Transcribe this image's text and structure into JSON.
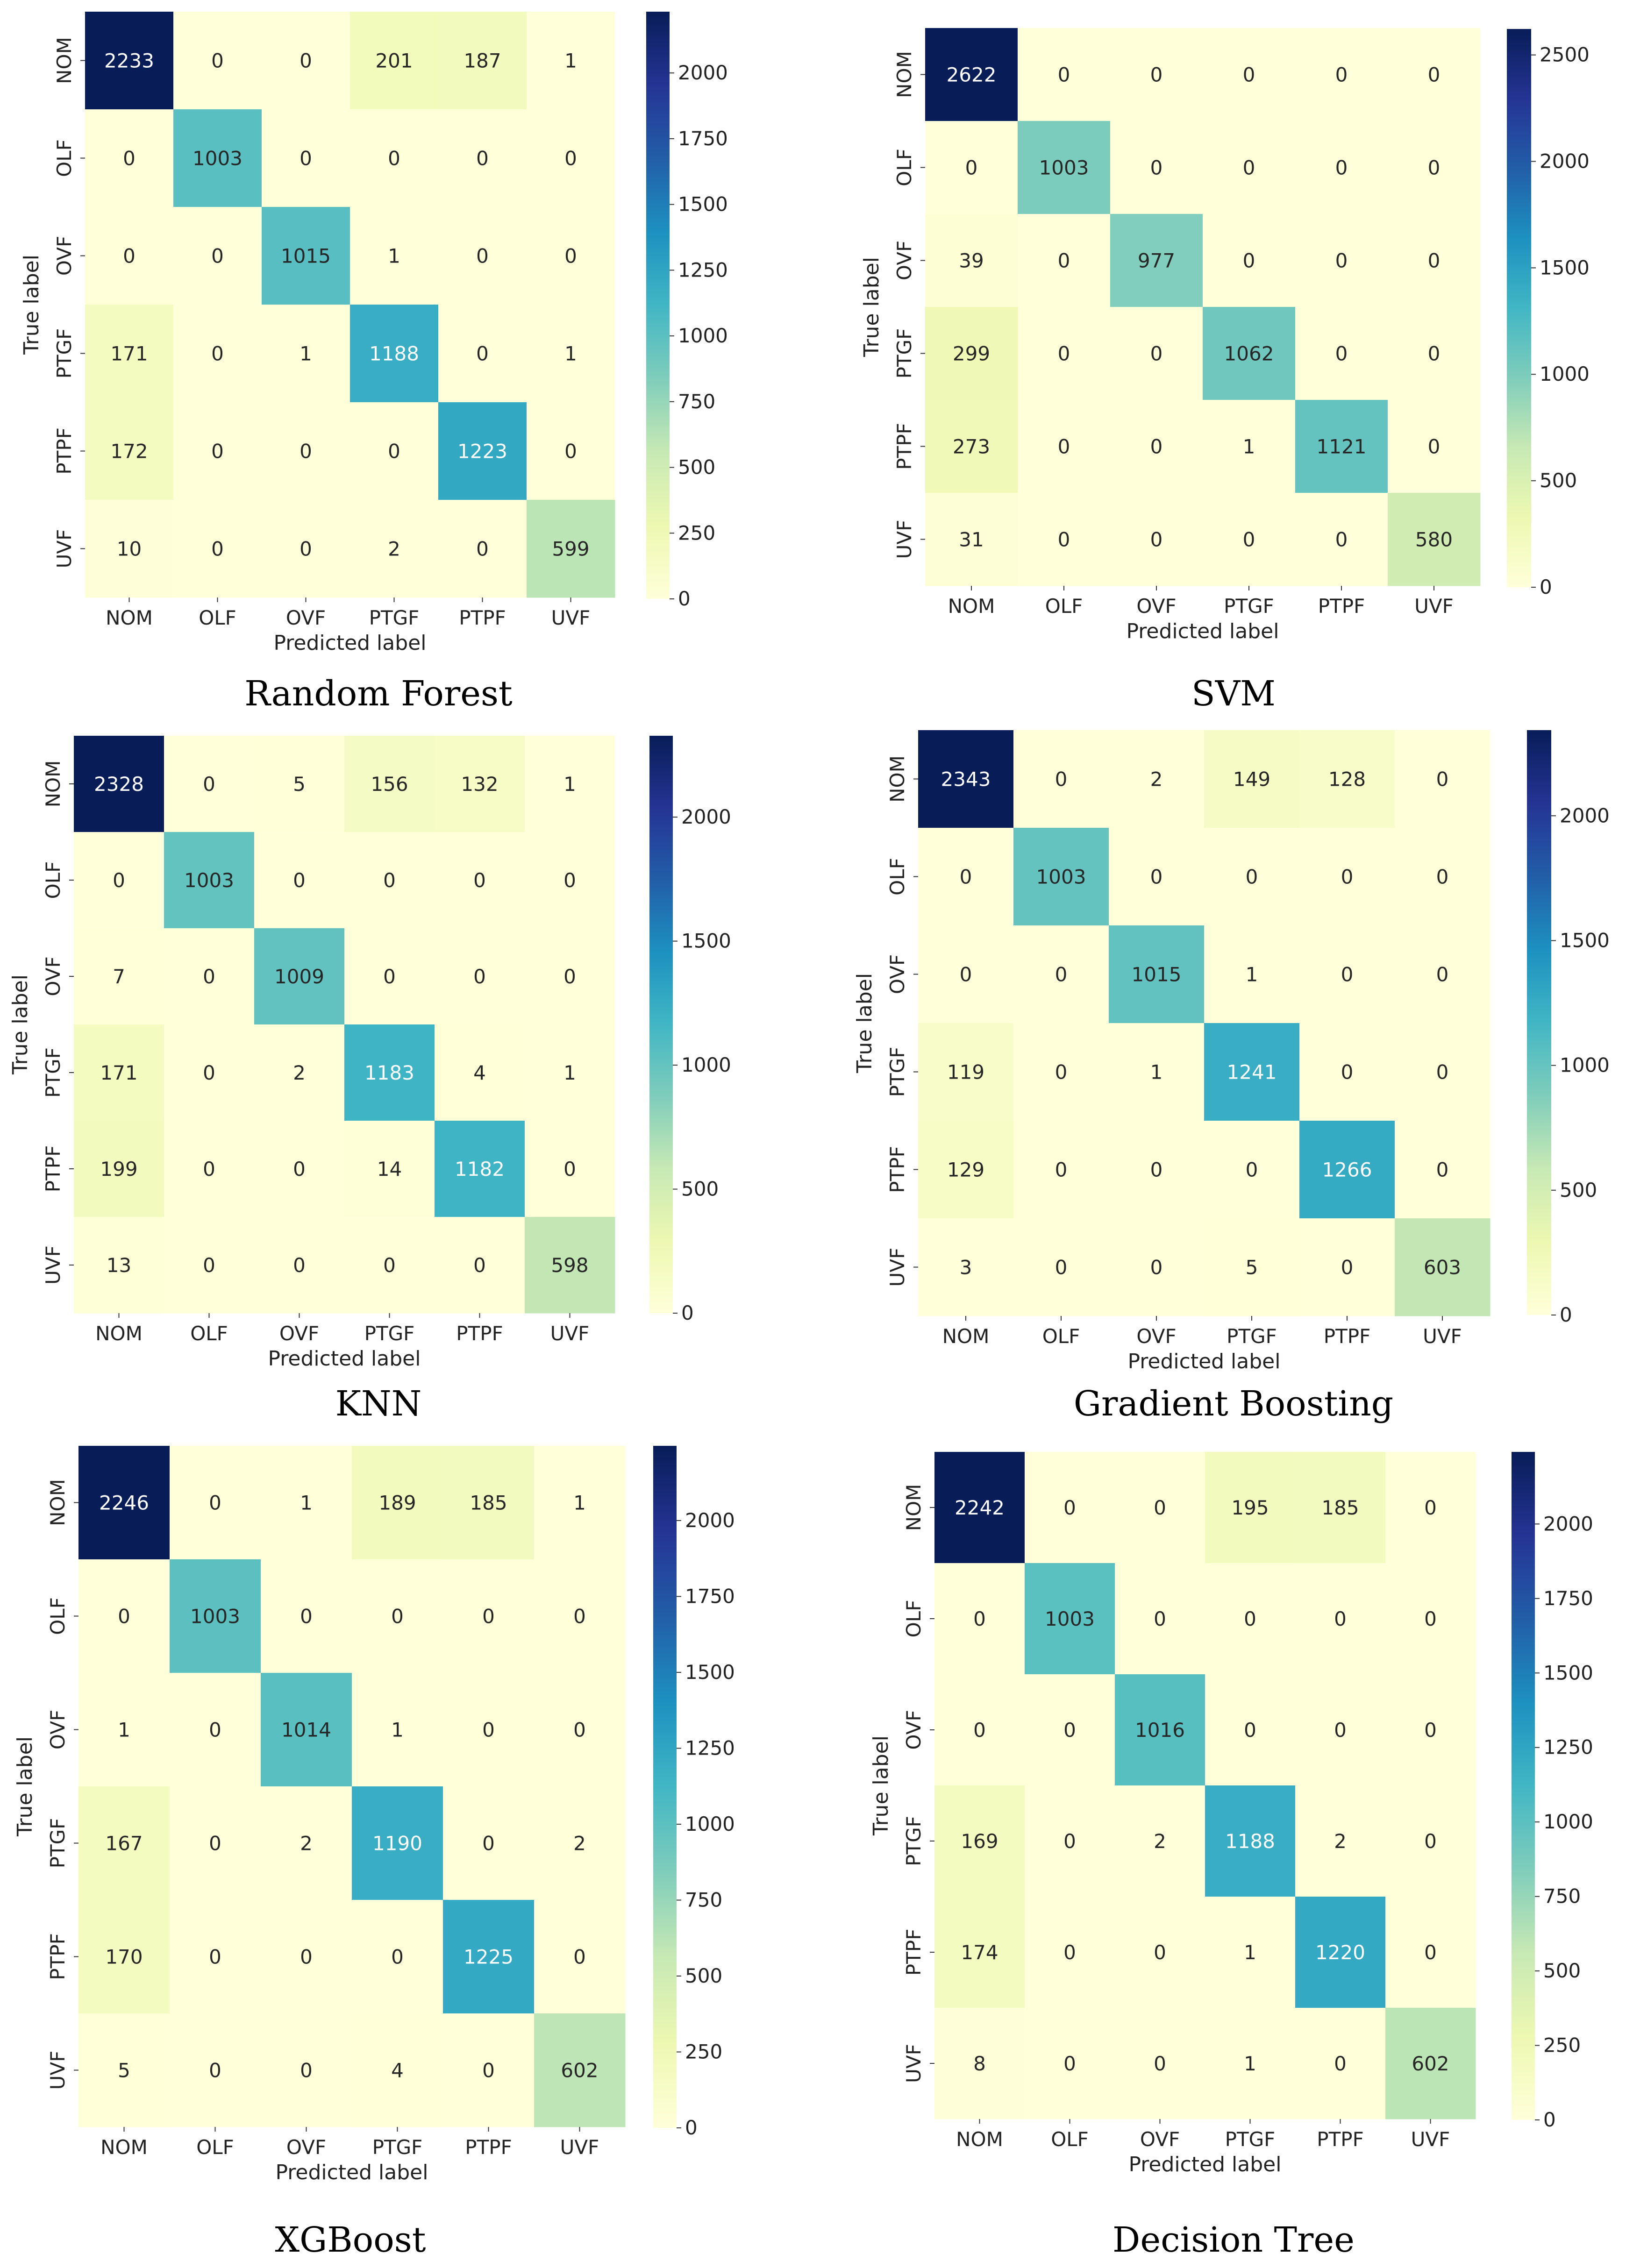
{
  "chart_data": [
    {
      "type": "heatmap",
      "caption": "Random Forest",
      "xlabel": "Predicted label",
      "ylabel": "True label",
      "x_categories": [
        "NOM",
        "OLF",
        "OVF",
        "PTGF",
        "PTPF",
        "UVF"
      ],
      "y_categories": [
        "NOM",
        "OLF",
        "OVF",
        "PTGF",
        "PTPF",
        "UVF"
      ],
      "matrix": [
        [
          2233,
          0,
          0,
          201,
          187,
          1
        ],
        [
          0,
          1003,
          0,
          0,
          0,
          0
        ],
        [
          0,
          0,
          1015,
          1,
          0,
          0
        ],
        [
          171,
          0,
          1,
          1188,
          0,
          1
        ],
        [
          172,
          0,
          0,
          0,
          1223,
          0
        ],
        [
          10,
          0,
          0,
          2,
          0,
          599
        ]
      ],
      "colorbar": {
        "vmin": 0,
        "vmax": 2233,
        "ticks": [
          0,
          250,
          500,
          750,
          1000,
          1250,
          1500,
          1750,
          2000
        ]
      }
    },
    {
      "type": "heatmap",
      "caption": "SVM",
      "xlabel": "Predicted label",
      "ylabel": "True label",
      "x_categories": [
        "NOM",
        "OLF",
        "OVF",
        "PTGF",
        "PTPF",
        "UVF"
      ],
      "y_categories": [
        "NOM",
        "OLF",
        "OVF",
        "PTGF",
        "PTPF",
        "UVF"
      ],
      "matrix": [
        [
          2622,
          0,
          0,
          0,
          0,
          0
        ],
        [
          0,
          1003,
          0,
          0,
          0,
          0
        ],
        [
          39,
          0,
          977,
          0,
          0,
          0
        ],
        [
          299,
          0,
          0,
          1062,
          0,
          0
        ],
        [
          273,
          0,
          0,
          1,
          1121,
          0
        ],
        [
          31,
          0,
          0,
          0,
          0,
          580
        ]
      ],
      "colorbar": {
        "vmin": 0,
        "vmax": 2622,
        "ticks": [
          0,
          500,
          1000,
          1500,
          2000,
          2500
        ]
      }
    },
    {
      "type": "heatmap",
      "caption": "KNN",
      "xlabel": "Predicted label",
      "ylabel": "True label",
      "x_categories": [
        "NOM",
        "OLF",
        "OVF",
        "PTGF",
        "PTPF",
        "UVF"
      ],
      "y_categories": [
        "NOM",
        "OLF",
        "OVF",
        "PTGF",
        "PTPF",
        "UVF"
      ],
      "matrix": [
        [
          2328,
          0,
          5,
          156,
          132,
          1
        ],
        [
          0,
          1003,
          0,
          0,
          0,
          0
        ],
        [
          7,
          0,
          1009,
          0,
          0,
          0
        ],
        [
          171,
          0,
          2,
          1183,
          4,
          1
        ],
        [
          199,
          0,
          0,
          14,
          1182,
          0
        ],
        [
          13,
          0,
          0,
          0,
          0,
          598
        ]
      ],
      "colorbar": {
        "vmin": 0,
        "vmax": 2328,
        "ticks": [
          0,
          500,
          1000,
          1500,
          2000
        ]
      }
    },
    {
      "type": "heatmap",
      "caption": "Gradient Boosting",
      "xlabel": "Predicted label",
      "ylabel": "True label",
      "x_categories": [
        "NOM",
        "OLF",
        "OVF",
        "PTGF",
        "PTPF",
        "UVF"
      ],
      "y_categories": [
        "NOM",
        "OLF",
        "OVF",
        "PTGF",
        "PTPF",
        "UVF"
      ],
      "matrix": [
        [
          2343,
          0,
          2,
          149,
          128,
          0
        ],
        [
          0,
          1003,
          0,
          0,
          0,
          0
        ],
        [
          0,
          0,
          1015,
          1,
          0,
          0
        ],
        [
          119,
          0,
          1,
          1241,
          0,
          0
        ],
        [
          129,
          0,
          0,
          0,
          1266,
          0
        ],
        [
          3,
          0,
          0,
          5,
          0,
          603
        ]
      ],
      "colorbar": {
        "vmin": 0,
        "vmax": 2343,
        "ticks": [
          0,
          500,
          1000,
          1500,
          2000
        ]
      }
    },
    {
      "type": "heatmap",
      "caption": "XGBoost",
      "xlabel": "Predicted label",
      "ylabel": "True label",
      "x_categories": [
        "NOM",
        "OLF",
        "OVF",
        "PTGF",
        "PTPF",
        "UVF"
      ],
      "y_categories": [
        "NOM",
        "OLF",
        "OVF",
        "PTGF",
        "PTPF",
        "UVF"
      ],
      "matrix": [
        [
          2246,
          0,
          1,
          189,
          185,
          1
        ],
        [
          0,
          1003,
          0,
          0,
          0,
          0
        ],
        [
          1,
          0,
          1014,
          1,
          0,
          0
        ],
        [
          167,
          0,
          2,
          1190,
          0,
          2
        ],
        [
          170,
          0,
          0,
          0,
          1225,
          0
        ],
        [
          5,
          0,
          0,
          4,
          0,
          602
        ]
      ],
      "colorbar": {
        "vmin": 0,
        "vmax": 2246,
        "ticks": [
          0,
          250,
          500,
          750,
          1000,
          1250,
          1500,
          1750,
          2000
        ]
      }
    },
    {
      "type": "heatmap",
      "caption": "Decision Tree",
      "xlabel": "Predicted label",
      "ylabel": "True label",
      "x_categories": [
        "NOM",
        "OLF",
        "OVF",
        "PTGF",
        "PTPF",
        "UVF"
      ],
      "y_categories": [
        "NOM",
        "OLF",
        "OVF",
        "PTGF",
        "PTPF",
        "UVF"
      ],
      "matrix": [
        [
          2242,
          0,
          0,
          195,
          185,
          0
        ],
        [
          0,
          1003,
          0,
          0,
          0,
          0
        ],
        [
          0,
          0,
          1016,
          0,
          0,
          0
        ],
        [
          169,
          0,
          2,
          1188,
          2,
          0
        ],
        [
          174,
          0,
          0,
          1,
          1220,
          0
        ],
        [
          8,
          0,
          0,
          1,
          0,
          602
        ]
      ],
      "colorbar": {
        "vmin": 0,
        "vmax": 2242,
        "ticks": [
          0,
          250,
          500,
          750,
          1000,
          1250,
          1500,
          1750,
          2000
        ]
      }
    }
  ]
}
